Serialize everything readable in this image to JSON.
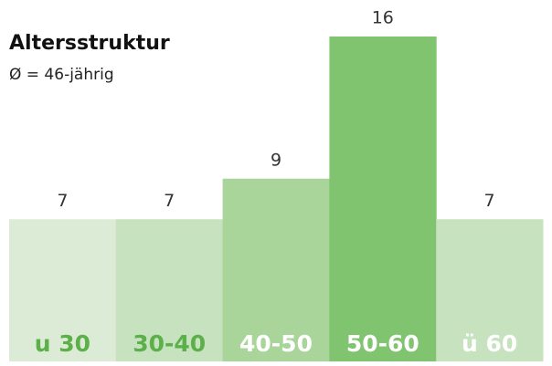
{
  "chart_data": {
    "type": "bar",
    "title": "Altersstruktur",
    "subtitle": "Ø = 46-jährig",
    "categories": [
      "u 30",
      "30-40",
      "40-50",
      "50-60",
      "ü 60"
    ],
    "values": [
      7,
      7,
      9,
      16,
      7
    ],
    "colors": [
      "#dcebd5",
      "#c6e2bf",
      "#a9d59b",
      "#80c46f",
      "#c6e2bf"
    ],
    "label_colors": [
      "#5cb04a",
      "#5cb04a",
      "#ffffff",
      "#ffffff",
      "#ffffff"
    ],
    "ylim": [
      0,
      16
    ]
  }
}
